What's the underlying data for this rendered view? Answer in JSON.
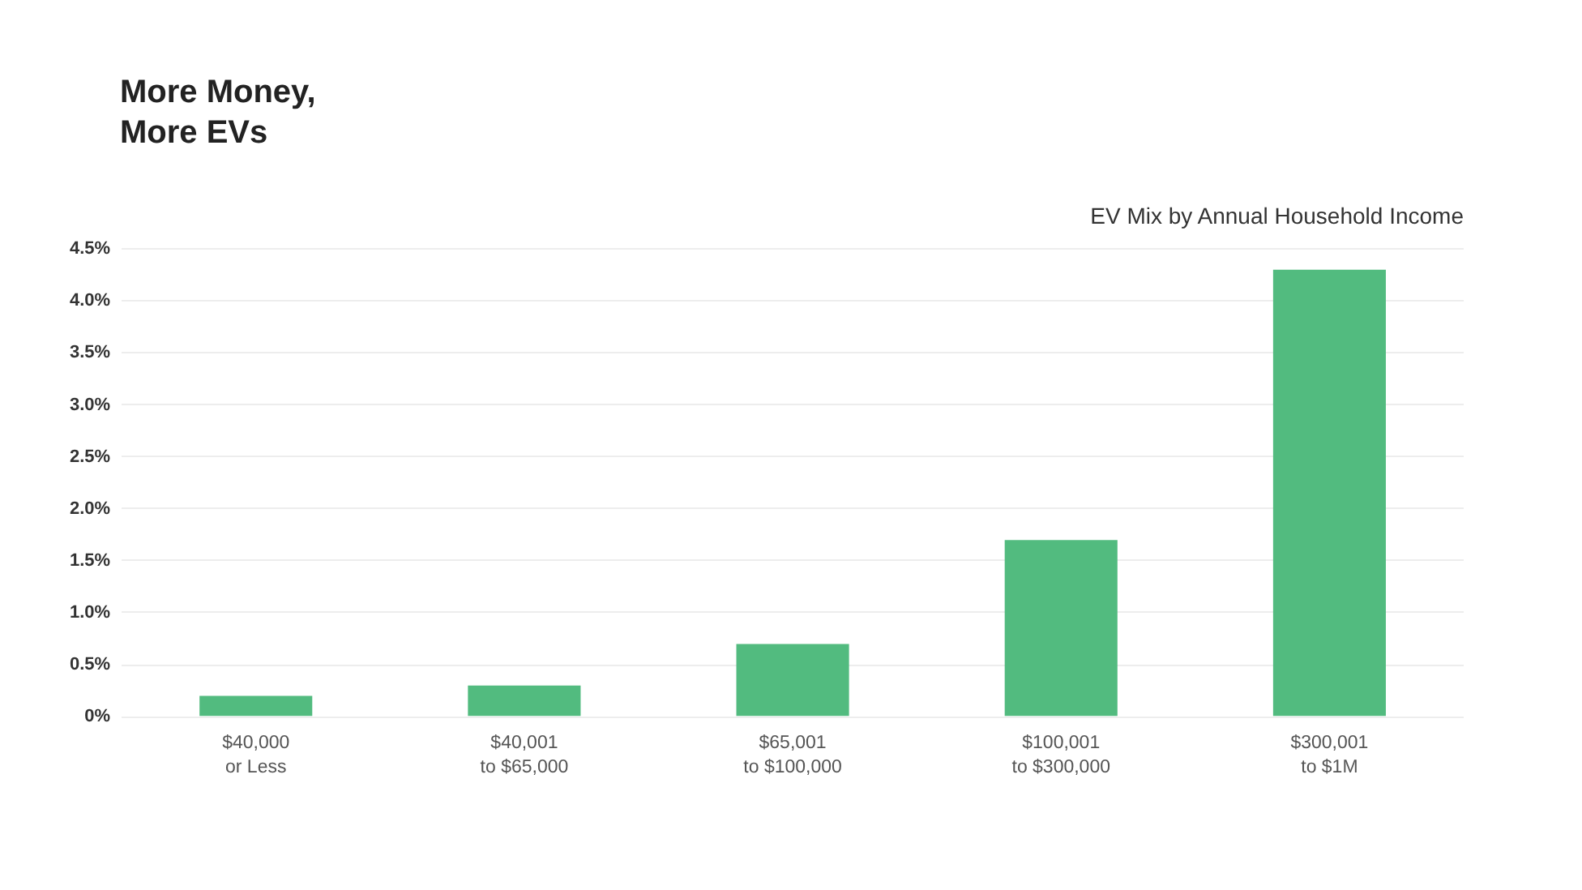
{
  "chart_data": {
    "type": "bar",
    "title": "More Money,\nMore EVs",
    "subtitle": "EV Mix by Annual Household Income",
    "categories": [
      "$40,000\nor Less",
      "$40,001\nto $65,000",
      "$65,001\nto $100,000",
      "$100,001\nto $300,000",
      "$300,001\nto $1M"
    ],
    "values": [
      0.2,
      0.3,
      0.7,
      1.7,
      4.3
    ],
    "color": "#52bb7f",
    "ylim": [
      0,
      4.5
    ],
    "yticks": [
      {
        "value": 0,
        "label": "0%"
      },
      {
        "value": 0.5,
        "label": "0.5%"
      },
      {
        "value": 1,
        "label": "1.0%"
      },
      {
        "value": 1.5,
        "label": "1.5%"
      },
      {
        "value": 2,
        "label": "2.0%"
      },
      {
        "value": 2.5,
        "label": "2.5%"
      },
      {
        "value": 3,
        "label": "3.0%"
      },
      {
        "value": 3.5,
        "label": "3.5%"
      },
      {
        "value": 4,
        "label": "4.0%"
      },
      {
        "value": 4.5,
        "label": "4.5%"
      }
    ],
    "grid": "y"
  }
}
